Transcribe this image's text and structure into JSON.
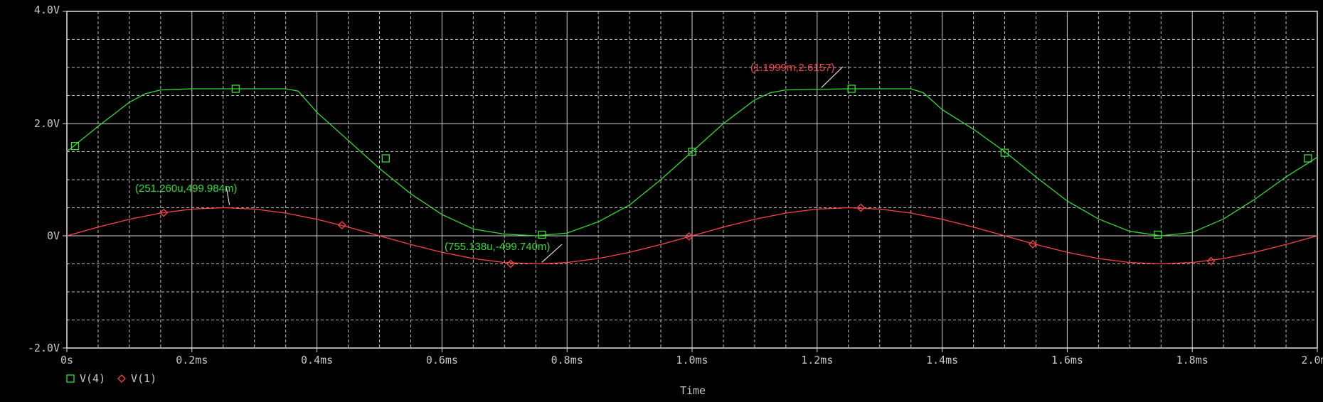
{
  "chart_data": {
    "type": "line",
    "xlabel": "Time",
    "ylabel": "",
    "xlim": [
      0,
      2.0
    ],
    "ylim": [
      -2.0,
      4.0
    ],
    "grid": true,
    "x_ticks": [
      {
        "value": 0,
        "label": "0s"
      },
      {
        "value": 0.2,
        "label": "0.2ms"
      },
      {
        "value": 0.4,
        "label": "0.4ms"
      },
      {
        "value": 0.6,
        "label": "0.6ms"
      },
      {
        "value": 0.8,
        "label": "0.8ms"
      },
      {
        "value": 1.0,
        "label": "1.0ms"
      },
      {
        "value": 1.2,
        "label": "1.2ms"
      },
      {
        "value": 1.4,
        "label": "1.4ms"
      },
      {
        "value": 1.6,
        "label": "1.6ms"
      },
      {
        "value": 1.8,
        "label": "1.8ms"
      },
      {
        "value": 2.0,
        "label": "2.0ms"
      }
    ],
    "y_ticks": [
      {
        "value": 4,
        "label": "4.0V"
      },
      {
        "value": 2,
        "label": "2.0V"
      },
      {
        "value": 0,
        "label": "0V"
      },
      {
        "value": -2,
        "label": "-2.0V"
      }
    ],
    "legend_position": "bottom-left",
    "series": [
      {
        "name": "V(4)",
        "color": "#33dd33",
        "marker": "square",
        "x": [
          0,
          0.05,
          0.1,
          0.125,
          0.15,
          0.2,
          0.27,
          0.35,
          0.37,
          0.4,
          0.45,
          0.5,
          0.55,
          0.6,
          0.65,
          0.7,
          0.75,
          0.8,
          0.85,
          0.9,
          0.95,
          1.0,
          1.05,
          1.1,
          1.125,
          1.15,
          1.25,
          1.35,
          1.37,
          1.4,
          1.45,
          1.5,
          1.55,
          1.6,
          1.65,
          1.7,
          1.75,
          1.8,
          1.85,
          1.9,
          1.95,
          2.0
        ],
        "y": [
          1.5,
          1.95,
          2.38,
          2.53,
          2.6,
          2.62,
          2.62,
          2.62,
          2.58,
          2.2,
          1.7,
          1.2,
          0.75,
          0.38,
          0.12,
          0.03,
          0.0,
          0.05,
          0.25,
          0.55,
          1.0,
          1.5,
          2.0,
          2.42,
          2.55,
          2.6,
          2.62,
          2.62,
          2.55,
          2.25,
          1.9,
          1.5,
          1.05,
          0.62,
          0.3,
          0.08,
          0.0,
          0.06,
          0.3,
          0.65,
          1.05,
          1.4
        ],
        "markers_x": [
          0.013,
          0.27,
          0.51,
          0.76,
          1.0,
          1.255,
          1.5,
          1.745,
          1.985
        ],
        "markers_y": [
          1.6,
          2.62,
          1.38,
          0.02,
          1.5,
          2.62,
          1.48,
          0.02,
          1.38
        ]
      },
      {
        "name": "V(1)",
        "color": "#ff4444",
        "marker": "diamond",
        "x": [
          0,
          0.05,
          0.1,
          0.15,
          0.2,
          0.251,
          0.3,
          0.35,
          0.4,
          0.45,
          0.5,
          0.55,
          0.6,
          0.65,
          0.7,
          0.755,
          0.8,
          0.85,
          0.9,
          0.95,
          1.0,
          1.05,
          1.1,
          1.15,
          1.2,
          1.25,
          1.3,
          1.35,
          1.4,
          1.45,
          1.5,
          1.55,
          1.6,
          1.65,
          1.7,
          1.75,
          1.8,
          1.85,
          1.9,
          1.95,
          2.0
        ],
        "y": [
          0,
          0.155,
          0.294,
          0.405,
          0.476,
          0.5,
          0.476,
          0.405,
          0.294,
          0.155,
          0,
          -0.155,
          -0.294,
          -0.405,
          -0.476,
          -0.4997,
          -0.476,
          -0.405,
          -0.294,
          -0.155,
          0,
          0.155,
          0.294,
          0.405,
          0.476,
          0.5,
          0.476,
          0.405,
          0.294,
          0.155,
          0,
          -0.155,
          -0.294,
          -0.405,
          -0.476,
          -0.5,
          -0.476,
          -0.405,
          -0.294,
          -0.155,
          0
        ],
        "markers_x": [
          0.155,
          0.44,
          0.71,
          0.995,
          1.27,
          1.545,
          1.83
        ],
        "markers_y": [
          0.41,
          0.19,
          -0.5,
          -0.01,
          0.5,
          -0.15,
          -0.45
        ]
      }
    ],
    "annotations": [
      {
        "text": "(251.260u,499.984m)",
        "color": "#33dd33",
        "x": 0.251,
        "y": 0.499984
      },
      {
        "text": "(755.138u,-499.740m)",
        "color": "#33dd33",
        "x": 0.755,
        "y": -0.49974
      },
      {
        "text": "(1.1999m,2.6157)",
        "color": "#ff4444",
        "x": 1.2,
        "y": 2.6157
      }
    ]
  }
}
